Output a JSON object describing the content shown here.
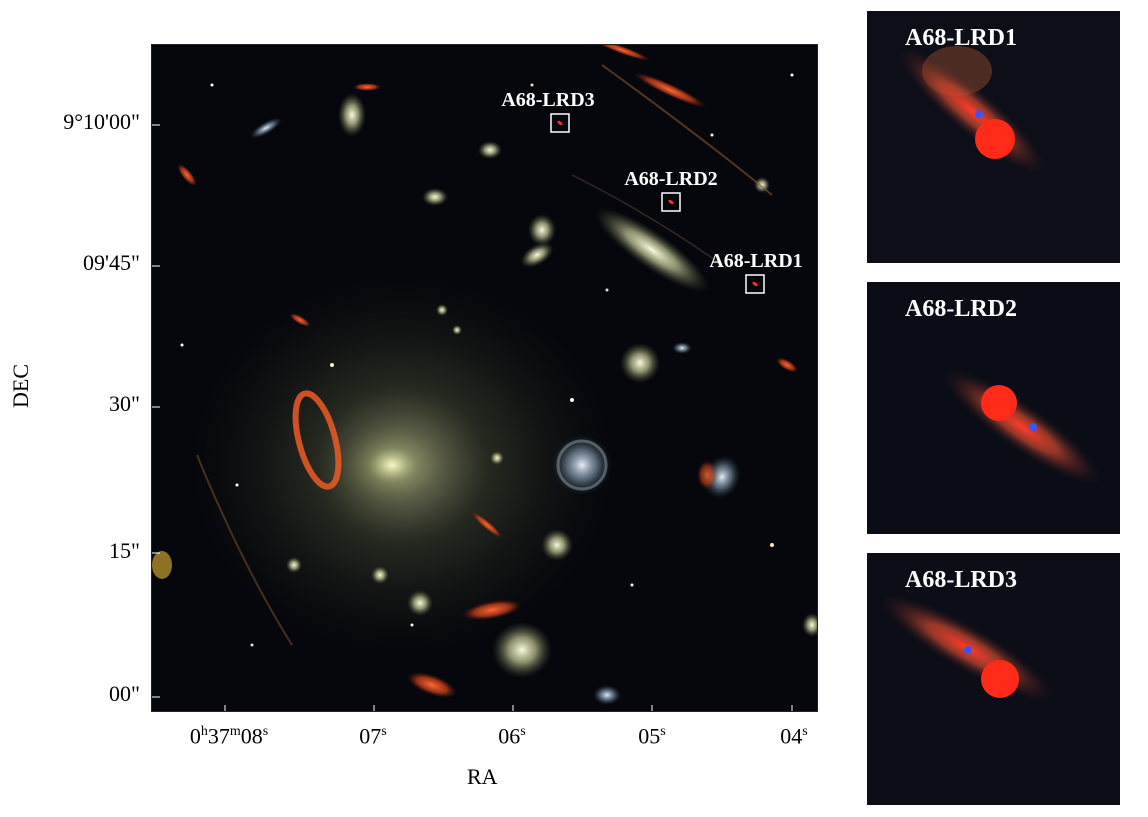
{
  "main_panel": {
    "source_labels": [
      "A68-LRD3",
      "A68-LRD2",
      "A68-LRD1"
    ]
  },
  "axes": {
    "y_title": "DEC",
    "x_title": "RA",
    "y_ticks": [
      "9°10'00\"",
      "09'45\"",
      "30\"",
      "15\"",
      "00\""
    ],
    "x_ticks": [
      {
        "h": "0",
        "m": "37",
        "s": "08"
      },
      {
        "s": "07"
      },
      {
        "s": "06"
      },
      {
        "s": "05"
      },
      {
        "s": "04"
      }
    ]
  },
  "cutouts": [
    {
      "label": "A68-LRD1"
    },
    {
      "label": "A68-LRD2"
    },
    {
      "label": "A68-LRD3"
    }
  ]
}
